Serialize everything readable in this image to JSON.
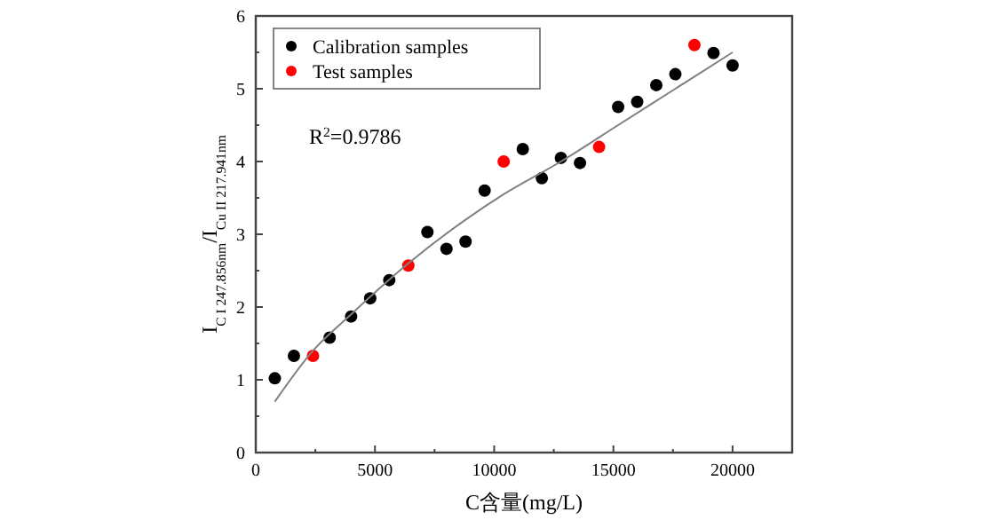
{
  "chart_data": {
    "type": "scatter",
    "xlabel": "C含量(mg/L)",
    "ylabel": "I$_{C I 247.856nm}$/I$_{Cu II 217.941nm}$",
    "annotations": [
      "R$^{2}$=0.9786"
    ],
    "xlim": [
      0,
      22500
    ],
    "xticks": [
      0,
      5000,
      10000,
      15000,
      20000
    ],
    "ylim": [
      0,
      6
    ],
    "yticks": [
      0,
      1,
      2,
      3,
      4,
      5,
      6
    ],
    "legend": "top left",
    "marker": "circle",
    "grid": false,
    "series": [
      {
        "name": "Calibration samples",
        "color": "#000000",
        "x": [
          800,
          1600,
          3100,
          4000,
          4800,
          5600,
          7200,
          8000,
          8800,
          9600,
          11200,
          12000,
          12800,
          13600,
          15200,
          16000,
          16800,
          17600,
          19200,
          20000
        ],
        "values": [
          1.02,
          1.33,
          1.58,
          1.87,
          2.12,
          2.37,
          3.03,
          2.8,
          2.9,
          3.6,
          4.17,
          3.77,
          4.05,
          3.98,
          4.75,
          4.82,
          5.05,
          5.2,
          5.49,
          5.32
        ]
      },
      {
        "name": "Test samples",
        "color": "#ff0000",
        "x": [
          2400,
          6400,
          10400,
          14400,
          18400
        ],
        "values": [
          1.33,
          2.57,
          4.0,
          4.2,
          5.6
        ]
      },
      {
        "type": "line",
        "color": "#808080",
        "marker": "none",
        "x": [
          800,
          2400,
          4000,
          6400,
          8800,
          10400,
          12800,
          15200,
          17600,
          20000
        ],
        "values": [
          0.7,
          1.4,
          1.9,
          2.6,
          3.2,
          3.55,
          4.0,
          4.5,
          5.0,
          5.5
        ]
      }
    ]
  }
}
